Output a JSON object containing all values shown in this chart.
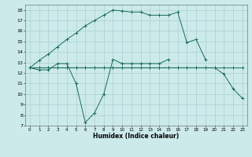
{
  "xlabel": "Humidex (Indice chaleur)",
  "background_color": "#cceaea",
  "grid_color": "#aacfcf",
  "line_color": "#1a6b5a",
  "xlim": [
    -0.5,
    23.5
  ],
  "ylim": [
    7,
    18.5
  ],
  "xticks": [
    0,
    1,
    2,
    3,
    4,
    5,
    6,
    7,
    8,
    9,
    10,
    11,
    12,
    13,
    14,
    15,
    16,
    17,
    18,
    19,
    20,
    21,
    22,
    23
  ],
  "yticks": [
    7,
    8,
    9,
    10,
    11,
    12,
    13,
    14,
    15,
    16,
    17,
    18
  ],
  "series": [
    {
      "x": [
        0,
        1,
        2,
        3,
        4,
        5,
        6,
        7,
        8,
        9,
        10,
        11,
        12,
        13,
        14,
        15,
        16,
        17,
        18,
        19
      ],
      "y": [
        12.5,
        13.2,
        13.8,
        14.5,
        15.2,
        15.8,
        16.5,
        17.0,
        17.5,
        18.0,
        17.9,
        17.8,
        17.8,
        17.5,
        17.5,
        17.5,
        17.8,
        14.9,
        15.2,
        13.3
      ]
    },
    {
      "x": [
        0,
        1,
        2,
        3,
        4,
        5,
        6,
        7,
        8,
        9,
        10,
        11,
        12,
        13,
        14,
        15
      ],
      "y": [
        12.5,
        12.3,
        12.3,
        12.9,
        12.9,
        11.0,
        7.3,
        8.2,
        10.0,
        13.3,
        12.9,
        12.9,
        12.9,
        12.9,
        12.9,
        13.3
      ]
    },
    {
      "x": [
        0,
        1,
        2,
        3,
        4,
        5,
        6,
        7,
        8,
        9,
        10,
        11,
        12,
        13,
        14,
        15,
        16,
        17,
        18,
        19,
        20,
        21,
        22,
        23
      ],
      "y": [
        12.5,
        12.5,
        12.5,
        12.5,
        12.5,
        12.5,
        12.5,
        12.5,
        12.5,
        12.5,
        12.5,
        12.5,
        12.5,
        12.5,
        12.5,
        12.5,
        12.5,
        12.5,
        12.5,
        12.5,
        12.5,
        11.9,
        10.5,
        9.6
      ]
    },
    {
      "x": [
        0,
        1,
        2,
        3,
        4,
        5,
        6,
        7,
        8,
        9,
        10,
        11,
        12,
        13,
        14,
        15,
        16,
        17,
        18,
        19,
        20,
        21,
        22,
        23
      ],
      "y": [
        12.5,
        12.5,
        12.5,
        12.5,
        12.5,
        12.5,
        12.5,
        12.5,
        12.5,
        12.5,
        12.5,
        12.5,
        12.5,
        12.5,
        12.5,
        12.5,
        12.5,
        12.5,
        12.5,
        12.5,
        12.5,
        12.5,
        12.5,
        12.5
      ]
    }
  ]
}
